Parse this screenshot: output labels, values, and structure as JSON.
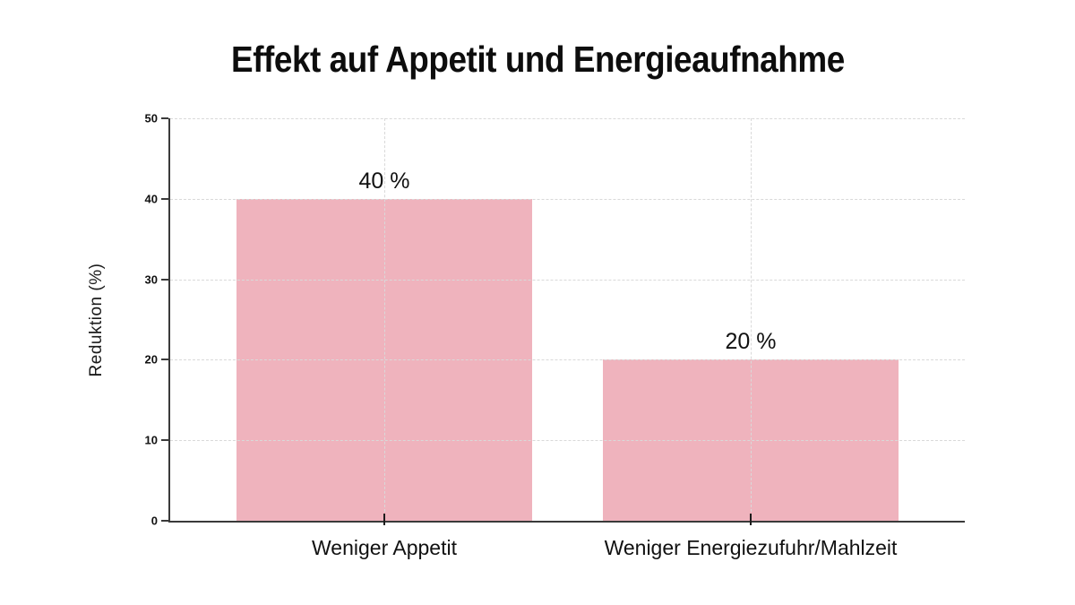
{
  "chart_data": {
    "type": "bar",
    "title": "Effekt auf Appetit und Energieaufnahme",
    "xlabel": "",
    "ylabel": "Reduktion (%)",
    "categories": [
      "Weniger Appetit",
      "Weniger Energiezufuhr/Mahlzeit"
    ],
    "values": [
      40,
      20
    ],
    "value_labels": [
      "40 %",
      "20 %"
    ],
    "yticks": [
      0,
      10,
      20,
      30,
      40,
      50
    ],
    "ylim": [
      0,
      50
    ],
    "grid": "dashed-horizontal-and-category-vertical",
    "legend": "none",
    "bar_color": "#efb3bd",
    "grid_color": "#d9d9d9",
    "axis_color": "#3a3a3a",
    "text_color": "#111111",
    "background_color": "#ffffff"
  }
}
